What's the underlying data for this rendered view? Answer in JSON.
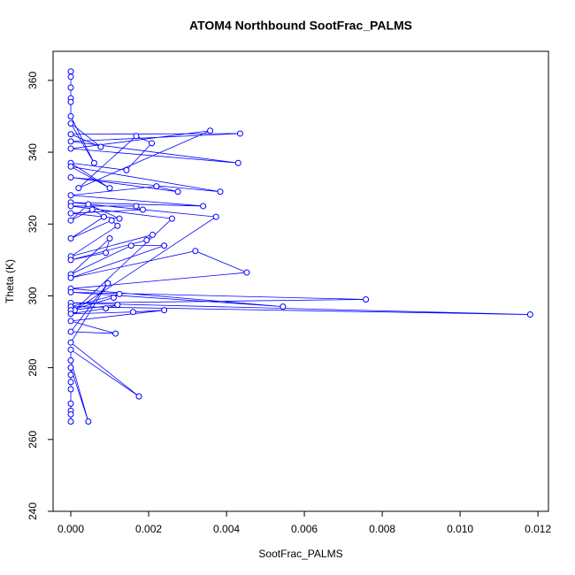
{
  "chart_data": {
    "type": "line",
    "title": "ATOM4 Northbound SootFrac_PALMS",
    "x_label": "SootFrac_PALMS",
    "y_label": "Theta (K)",
    "xlim": [
      -0.000455,
      0.01227
    ],
    "ylim": [
      240,
      368.1
    ],
    "xticks": [
      {
        "value": 0,
        "label": "0.000"
      },
      {
        "value": 0.002,
        "label": "0.002"
      },
      {
        "value": 0.004,
        "label": "0.004"
      },
      {
        "value": 0.006,
        "label": "0.006"
      },
      {
        "value": 0.008,
        "label": "0.008"
      },
      {
        "value": 0.01,
        "label": "0.010"
      },
      {
        "value": 0.012,
        "label": "0.012"
      }
    ],
    "yticks": [
      240,
      260,
      280,
      300,
      320,
      340,
      360
    ],
    "grid": false,
    "series": [
      {
        "color": "#0000ff",
        "x": [
          0,
          0,
          0,
          0,
          0,
          0,
          0.0006,
          0,
          0.00077,
          0,
          0.00435,
          0,
          0.0043,
          0,
          0.00358,
          0.0002,
          0.00168,
          0.00208,
          0.00143,
          0,
          0.001,
          0,
          0.00384,
          0,
          0.00275,
          0.0022,
          0,
          0.0034,
          0,
          0.00373,
          0.0001,
          0.0026,
          0,
          0.00168,
          0.00185,
          0,
          0.00125,
          0.00045,
          0,
          0.00055,
          0.00085,
          0,
          0.00105,
          0.0012,
          0,
          0.0021,
          0.00195,
          0,
          0.0009,
          0.001,
          0,
          0.00155,
          0.0024,
          0,
          0.0032,
          0.00452,
          0,
          0.00545,
          0,
          0.00758,
          0,
          0.0118,
          0,
          0.00125,
          0.0011,
          0,
          0.0012,
          0.0009,
          0,
          0.0016,
          0.0024,
          0,
          0.00115,
          0,
          0.00095,
          0,
          0.00175,
          0,
          0,
          0.00045,
          0,
          0,
          0,
          0,
          0,
          0,
          0,
          0
        ],
        "values": [
          362.5,
          361,
          358,
          355,
          354,
          350,
          337,
          348,
          341.5,
          345,
          345.2,
          343,
          337,
          341,
          346,
          330,
          344.5,
          342.5,
          335,
          337,
          330,
          336,
          329,
          333,
          329,
          330.5,
          328,
          325,
          326,
          322,
          296,
          321.5,
          325,
          325,
          324,
          323,
          321.5,
          325.5,
          321,
          324,
          322,
          316,
          321,
          319.5,
          311,
          317,
          315.5,
          310,
          312,
          316,
          306,
          314,
          314,
          305,
          312.5,
          306.5,
          302,
          297,
          301,
          299,
          298,
          294.8,
          297,
          300.5,
          299.5,
          296,
          297.5,
          296.5,
          295,
          295.5,
          296,
          293,
          289.5,
          290,
          303.5,
          287,
          272,
          285,
          282,
          265,
          280,
          278,
          276,
          274,
          270,
          268,
          267,
          265
        ]
      }
    ]
  }
}
